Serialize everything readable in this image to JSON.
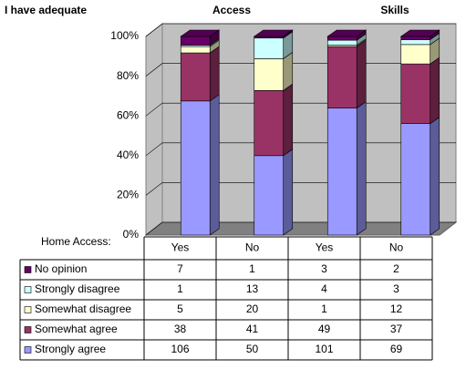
{
  "chart_data": {
    "type": "bar",
    "stacking": "percent",
    "title": "I have adequate",
    "groups": [
      "Access",
      "Skills"
    ],
    "x_label": "Home Access:",
    "categories": [
      "Yes",
      "No",
      "Yes",
      "No"
    ],
    "ylim": [
      0,
      100
    ],
    "yticks": [
      {
        "value": 0,
        "label": "0%"
      },
      {
        "value": 20,
        "label": "20%"
      },
      {
        "value": 40,
        "label": "40%"
      },
      {
        "value": 60,
        "label": "60%"
      },
      {
        "value": 80,
        "label": "80%"
      },
      {
        "value": 100,
        "label": "100%"
      }
    ],
    "grid": true,
    "series": [
      {
        "name": "Strongly agree",
        "color": "#9999ff",
        "values": [
          106,
          50,
          101,
          69
        ]
      },
      {
        "name": "Somewhat agree",
        "color": "#993366",
        "values": [
          38,
          41,
          49,
          37
        ]
      },
      {
        "name": "Somewhat disagree",
        "color": "#ffffcc",
        "values": [
          5,
          20,
          1,
          12
        ]
      },
      {
        "name": "Strongly disagree",
        "color": "#ccffff",
        "values": [
          1,
          13,
          4,
          3
        ]
      },
      {
        "name": "No opinion",
        "color": "#660066",
        "values": [
          7,
          1,
          3,
          2
        ]
      }
    ]
  }
}
